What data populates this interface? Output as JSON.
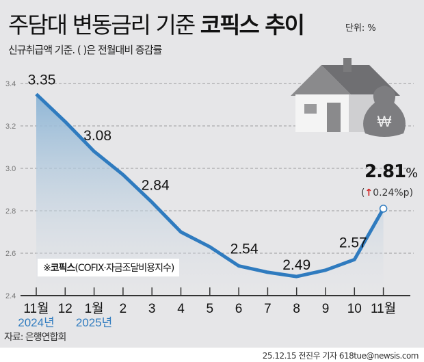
{
  "header": {
    "title_regular": "주담대 변동금리 기준 ",
    "title_bold": "코픽스 추이",
    "unit": "단위: %",
    "subtitle": "신규취급액 기준. ( )은 전월대비 증감률"
  },
  "note": {
    "prefix": "※",
    "bold": "코픽스",
    "rest": "(COFIX·자금조달비용지수)"
  },
  "source": "자료: 은행연합회",
  "credit": "25.12.15 전진우 기자 618tue@newsis.com",
  "latest": {
    "value": "2.81",
    "unit": "%",
    "change_arrow": "↑",
    "change": "0.24%p",
    "open": "(",
    "close": ")"
  },
  "colors": {
    "line": "#2f7bbf",
    "area_top": "#8fb6d6",
    "background": "#e6e6e8",
    "up": "#d21f1f"
  },
  "chart_data": {
    "type": "area",
    "categories": [
      "11월",
      "12",
      "1월",
      "2",
      "3",
      "4",
      "5",
      "6",
      "7",
      "8",
      "9",
      "10",
      "11월"
    ],
    "year_labels": [
      {
        "index": 0,
        "text": "2024년"
      },
      {
        "index": 2,
        "text": "2025년"
      }
    ],
    "series": [
      {
        "values": [
          3.35,
          3.22,
          3.08,
          2.97,
          2.84,
          2.7,
          2.63,
          2.54,
          2.51,
          2.49,
          2.52,
          2.57,
          2.81
        ]
      }
    ],
    "data_labels": [
      {
        "index": 0,
        "text": "3.35"
      },
      {
        "index": 2,
        "text": "3.08"
      },
      {
        "index": 4,
        "text": "2.84"
      },
      {
        "index": 7,
        "text": "2.54"
      },
      {
        "index": 9,
        "text": "2.49"
      },
      {
        "index": 11,
        "text": "2.57"
      }
    ],
    "yticks": [
      "2.4",
      "2.6",
      "2.8",
      "3.0",
      "3.2",
      "3.4"
    ],
    "ylim": [
      2.4,
      3.4
    ],
    "grid": true
  }
}
